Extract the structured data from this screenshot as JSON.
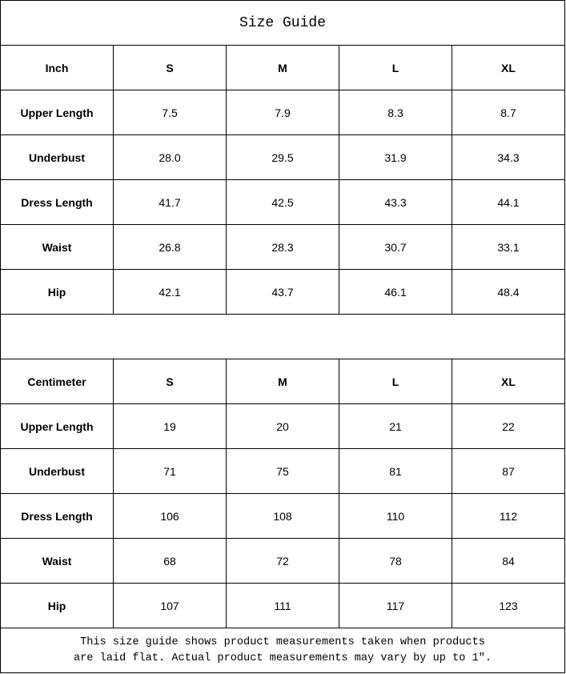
{
  "title": "Size Guide",
  "sections": [
    {
      "unit": "Inch",
      "sizes": [
        "S",
        "M",
        "L",
        "XL"
      ],
      "rows": [
        {
          "label": "Upper Length",
          "values": [
            "7.5",
            "7.9",
            "8.3",
            "8.7"
          ]
        },
        {
          "label": "Underbust",
          "values": [
            "28.0",
            "29.5",
            "31.9",
            "34.3"
          ]
        },
        {
          "label": "Dress Length",
          "values": [
            "41.7",
            "42.5",
            "43.3",
            "44.1"
          ]
        },
        {
          "label": "Waist",
          "values": [
            "26.8",
            "28.3",
            "30.7",
            "33.1"
          ]
        },
        {
          "label": "Hip",
          "values": [
            "42.1",
            "43.7",
            "46.1",
            "48.4"
          ]
        }
      ]
    },
    {
      "unit": "Centimeter",
      "sizes": [
        "S",
        "M",
        "L",
        "XL"
      ],
      "rows": [
        {
          "label": "Upper Length",
          "values": [
            "19",
            "20",
            "21",
            "22"
          ]
        },
        {
          "label": "Underbust",
          "values": [
            "71",
            "75",
            "81",
            "87"
          ]
        },
        {
          "label": "Dress Length",
          "values": [
            "106",
            "108",
            "110",
            "112"
          ]
        },
        {
          "label": "Waist",
          "values": [
            "68",
            "72",
            "78",
            "84"
          ]
        },
        {
          "label": "Hip",
          "values": [
            "107",
            "111",
            "117",
            "123"
          ]
        }
      ]
    }
  ],
  "footer": {
    "line1": "This size guide shows product measurements taken when products",
    "line2": "are laid flat. Actual product measurements may vary by up to 1″."
  }
}
